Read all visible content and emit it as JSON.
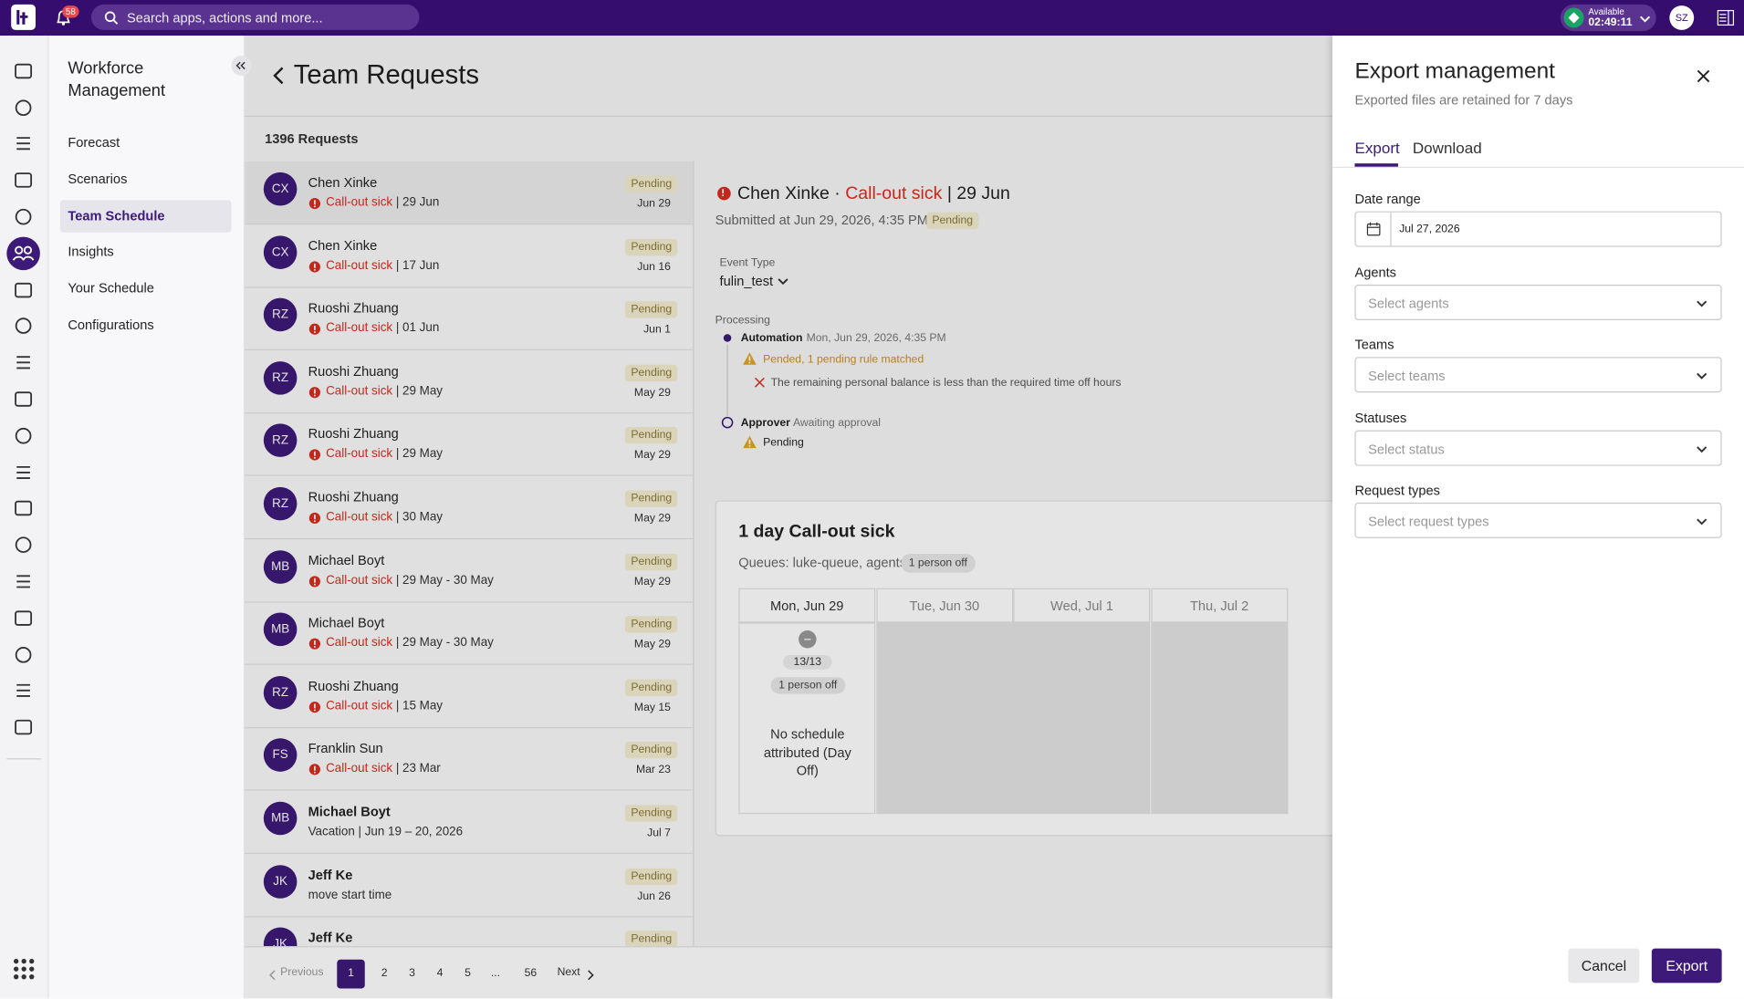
{
  "topbar": {
    "notifications": "58",
    "search_placeholder": "Search apps, actions and more...",
    "status": "Available",
    "timer": "02:49:11",
    "avatar": "SZ"
  },
  "sidebar": {
    "title": "Workforce Management",
    "items": [
      "Forecast",
      "Scenarios",
      "Team Schedule",
      "Insights",
      "Your Schedule",
      "Configurations"
    ],
    "active": 2
  },
  "page": {
    "title": "Team Requests",
    "count": "1396 Requests"
  },
  "requests": [
    {
      "initials": "CX",
      "name": "Chen Xinke",
      "type": "Call-out sick",
      "detail": "| 29 Jun",
      "status": "Pending",
      "date": "Jun 29",
      "alert": true
    },
    {
      "initials": "CX",
      "name": "Chen Xinke",
      "type": "Call-out sick",
      "detail": "| 17 Jun",
      "status": "Pending",
      "date": "Jun 16",
      "alert": true
    },
    {
      "initials": "RZ",
      "name": "Ruoshi Zhuang",
      "type": "Call-out sick",
      "detail": "| 01 Jun",
      "status": "Pending",
      "date": "Jun 1",
      "alert": true
    },
    {
      "initials": "RZ",
      "name": "Ruoshi Zhuang",
      "type": "Call-out sick",
      "detail": "| 29 May",
      "status": "Pending",
      "date": "May 29",
      "alert": true
    },
    {
      "initials": "RZ",
      "name": "Ruoshi Zhuang",
      "type": "Call-out sick",
      "detail": "| 29 May",
      "status": "Pending",
      "date": "May 29",
      "alert": true
    },
    {
      "initials": "RZ",
      "name": "Ruoshi Zhuang",
      "type": "Call-out sick",
      "detail": "| 30 May",
      "status": "Pending",
      "date": "May 29",
      "alert": true
    },
    {
      "initials": "MB",
      "name": "Michael Boyt",
      "type": "Call-out sick",
      "detail": "| 29 May - 30 May",
      "status": "Pending",
      "date": "May 29",
      "alert": true
    },
    {
      "initials": "MB",
      "name": "Michael Boyt",
      "type": "Call-out sick",
      "detail": "| 29 May - 30 May",
      "status": "Pending",
      "date": "May 29",
      "alert": true
    },
    {
      "initials": "RZ",
      "name": "Ruoshi Zhuang",
      "type": "Call-out sick",
      "detail": "| 15 May",
      "status": "Pending",
      "date": "May 15",
      "alert": true
    },
    {
      "initials": "FS",
      "name": "Franklin Sun",
      "type": "Call-out sick",
      "detail": "| 23 Mar",
      "status": "Pending",
      "date": "Mar 23",
      "alert": true
    },
    {
      "initials": "MB",
      "name": "Michael Boyt",
      "type": "Vacation",
      "detail": "| Jun 19 – 20, 2026",
      "status": "Pending",
      "date": "Jul 7",
      "alert": false,
      "unread": true
    },
    {
      "initials": "JK",
      "name": "Jeff Ke",
      "type": "move start time",
      "status": "Pending",
      "date": "Jun 26",
      "alert": false,
      "unread": true
    },
    {
      "initials": "JK",
      "name": "Jeff Ke",
      "status": "Pending",
      "alert": false,
      "unread": true
    }
  ],
  "detail": {
    "name": "Chen Xinke",
    "separator": "·",
    "type": "Call-out sick",
    "date": "| 29 Jun",
    "submitted": "Submitted at Jun 29, 2026, 4:35 PM",
    "status": "Pending",
    "event_type_label": "Event Type",
    "event_type": "fulin_test",
    "processing_label": "Processing",
    "automation": {
      "label": "Automation",
      "time": "Mon, Jun 29, 2026, 4:35 PM",
      "warning": "Pended, 1 pending rule matched",
      "error": "The remaining personal balance is less than the required time off hours"
    },
    "approver": {
      "label": "Approver",
      "state": "Awaiting approval",
      "status": "Pending"
    }
  },
  "summary": {
    "title": "1 day Call-out sick",
    "queues": "Queues: luke-queue, agents",
    "badge": "1 person off",
    "days": [
      "Mon, Jun 29",
      "Tue, Jun 30",
      "Wed, Jul 1",
      "Thu, Jul 2"
    ],
    "cell": {
      "count": "13/13",
      "off": "1 person off",
      "note": "No schedule attributed (Day Off)"
    }
  },
  "pagination": {
    "previous": "Previous",
    "pages": [
      "1",
      "2",
      "3",
      "4",
      "5",
      "...",
      "56"
    ],
    "next": "Next",
    "active": 0
  },
  "export_panel": {
    "title": "Export management",
    "subtitle": "Exported files are retained for 7 days",
    "tabs": [
      "Export",
      "Download"
    ],
    "fields": [
      {
        "label": "Date range",
        "value": "Jul 27, 2026"
      },
      {
        "label": "Agents",
        "placeholder": "Select agents"
      },
      {
        "label": "Teams",
        "placeholder": "Select teams"
      },
      {
        "label": "Statuses",
        "placeholder": "Select status"
      },
      {
        "label": "Request types",
        "placeholder": "Select request types"
      }
    ],
    "cancel": "Cancel",
    "export": "Export"
  }
}
